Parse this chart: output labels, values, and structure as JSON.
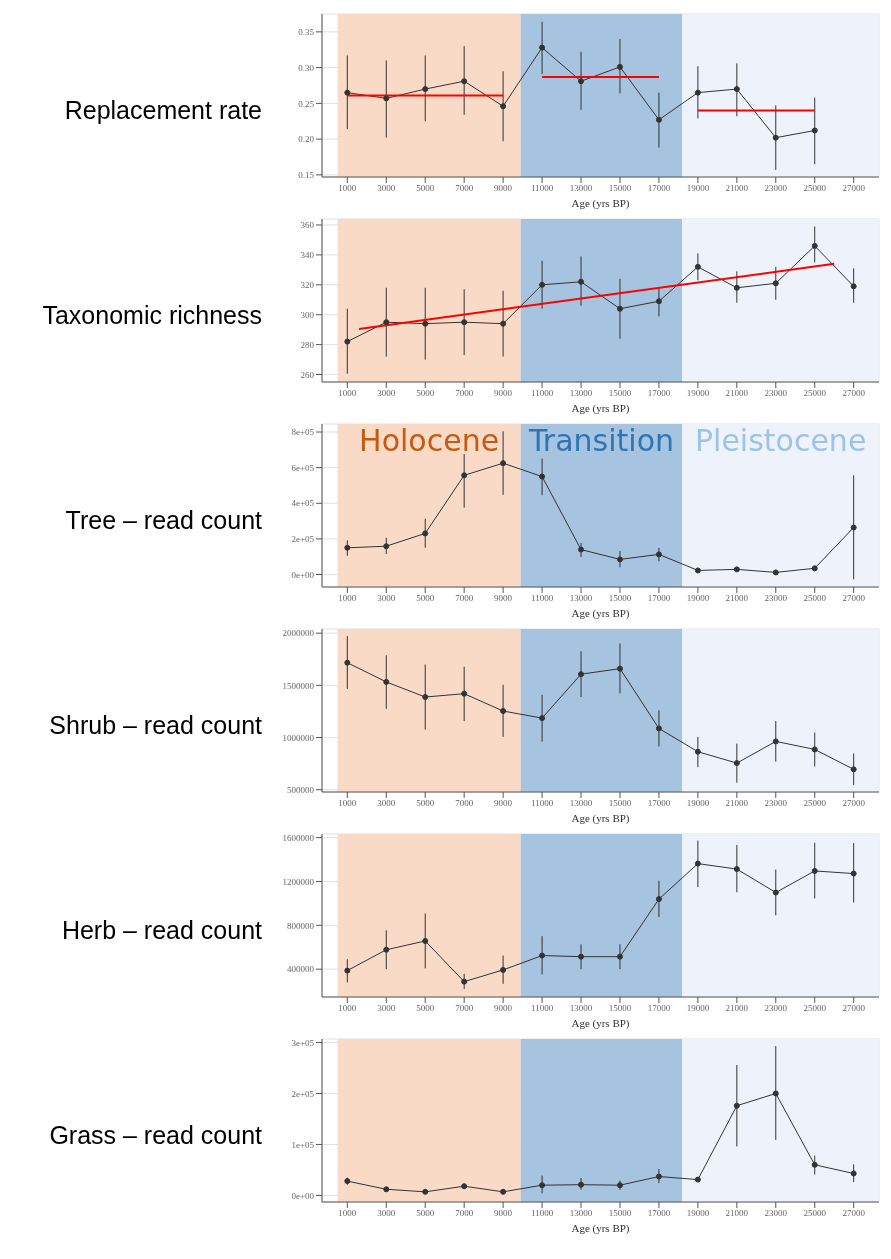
{
  "chart_data": [
    {
      "type": "line",
      "ylabel": "Replacement rate",
      "xlabel": "Age (yrs BP)",
      "grid": true,
      "marker": "circle",
      "xlim": [
        -300,
        28300
      ],
      "xticks": [
        1000,
        3000,
        5000,
        7000,
        9000,
        11000,
        13000,
        15000,
        17000,
        19000,
        21000,
        23000,
        25000,
        27000
      ],
      "ylim": [
        0.147,
        0.375
      ],
      "yticks": [
        0.15,
        {
          "value": 0.2,
          "label": "0.20"
        },
        0.25,
        {
          "value": 0.3,
          "label": "0.30"
        },
        0.35
      ],
      "bands": [
        {
          "axis": "x",
          "from": 500,
          "to": 9900,
          "color": "#f9dac6"
        },
        {
          "axis": "x",
          "from": 9900,
          "to": 18200,
          "color": "#a6c3df"
        },
        {
          "axis": "x",
          "from": 18200,
          "to": 28300,
          "color": "#eef3fb"
        }
      ],
      "series": [
        {
          "color": "#333333",
          "x": [
            1000,
            3000,
            5000,
            7000,
            9000,
            11000,
            13000,
            15000,
            17000,
            19000,
            21000,
            23000,
            25000
          ],
          "values": [
            0.265,
            0.257,
            0.27,
            0.281,
            0.246,
            0.328,
            0.281,
            0.301,
            0.227,
            0.265,
            0.27,
            0.202,
            0.212
          ],
          "errors": [
            [
              0.214,
              0.317
            ],
            [
              0.202,
              0.31
            ],
            [
              0.225,
              0.317
            ],
            [
              0.234,
              0.33
            ],
            [
              0.197,
              0.295
            ],
            [
              0.291,
              0.364
            ],
            [
              0.241,
              0.322
            ],
            [
              0.264,
              0.34
            ],
            [
              0.188,
              0.265
            ],
            [
              0.229,
              0.302
            ],
            [
              0.232,
              0.306
            ],
            [
              0.157,
              0.247
            ],
            [
              0.165,
              0.258
            ]
          ]
        },
        {
          "type": "line",
          "color": "#ff0000",
          "marker": "none",
          "x": [
            1000,
            9000
          ],
          "values": [
            0.261,
            0.261
          ]
        },
        {
          "type": "line",
          "color": "#ff0000",
          "marker": "none",
          "x": [
            11000,
            17000
          ],
          "values": [
            0.287,
            0.287
          ]
        },
        {
          "type": "line",
          "color": "#ff0000",
          "marker": "none",
          "x": [
            19000,
            25000
          ],
          "values": [
            0.24,
            0.24
          ]
        }
      ]
    },
    {
      "type": "line",
      "ylabel": "Taxonomic richness",
      "xlabel": "Age (yrs BP)",
      "grid": true,
      "marker": "circle",
      "xlim": [
        -300,
        28300
      ],
      "xticks": [
        1000,
        3000,
        5000,
        7000,
        9000,
        11000,
        13000,
        15000,
        17000,
        19000,
        21000,
        23000,
        25000,
        27000
      ],
      "ylim": [
        255,
        364
      ],
      "yticks": [
        260,
        280,
        300,
        320,
        340,
        360
      ],
      "bands": [
        {
          "axis": "x",
          "from": 500,
          "to": 9900,
          "color": "#f9dac6"
        },
        {
          "axis": "x",
          "from": 9900,
          "to": 18200,
          "color": "#a6c3df"
        },
        {
          "axis": "x",
          "from": 18200,
          "to": 28300,
          "color": "#eef3fb"
        }
      ],
      "series": [
        {
          "color": "#333333",
          "x": [
            1000,
            3000,
            5000,
            7000,
            9000,
            11000,
            13000,
            15000,
            17000,
            19000,
            21000,
            23000,
            25000,
            27000
          ],
          "values": [
            282,
            295,
            294,
            295,
            294,
            320,
            322,
            304,
            309,
            332,
            318,
            321,
            346,
            319
          ],
          "errors": [
            [
              260.5,
              304
            ],
            [
              272,
              318
            ],
            [
              270,
              318
            ],
            [
              273,
              317
            ],
            [
              272,
              316
            ],
            [
              304,
              336
            ],
            [
              306,
              339
            ],
            [
              284,
              324
            ],
            [
              299,
              318
            ],
            [
              323,
              341
            ],
            [
              308,
              329
            ],
            [
              310,
              332
            ],
            [
              335,
              359
            ],
            [
              308,
              331
            ]
          ]
        },
        {
          "type": "line",
          "color": "#ff0000",
          "marker": "none",
          "x": [
            1600,
            26000
          ],
          "values": [
            290.5,
            334
          ]
        }
      ]
    },
    {
      "type": "line",
      "ylabel": "Tree – read count",
      "xlabel": "Age (yrs BP)",
      "grid": true,
      "marker": "circle",
      "xlim": [
        -300,
        28300
      ],
      "xticks": [
        1000,
        3000,
        5000,
        7000,
        9000,
        11000,
        13000,
        15000,
        17000,
        19000,
        21000,
        23000,
        25000,
        27000
      ],
      "ylim": [
        -70000,
        845000
      ],
      "yticks": [
        {
          "value": 0,
          "label": "0e+00"
        },
        {
          "value": 200000,
          "label": "2e+05"
        },
        {
          "value": 400000,
          "label": "4e+05"
        },
        {
          "value": 600000,
          "label": "6e+05"
        },
        {
          "value": 800000,
          "label": "8e+05"
        }
      ],
      "bands": [
        {
          "axis": "x",
          "from": 500,
          "to": 9900,
          "color": "#f9dac6",
          "label": "Holocene"
        },
        {
          "axis": "x",
          "from": 9900,
          "to": 18200,
          "color": "#a6c3df",
          "label": "Transition"
        },
        {
          "axis": "x",
          "from": 18200,
          "to": 28300,
          "color": "#eef3fb",
          "label": "Pleistocene"
        }
      ],
      "series": [
        {
          "color": "#333333",
          "x": [
            1000,
            3000,
            5000,
            7000,
            9000,
            11000,
            13000,
            15000,
            17000,
            19000,
            21000,
            23000,
            25000,
            27000
          ],
          "values": [
            150000,
            159000,
            231000,
            557000,
            625000,
            550000,
            140000,
            85000,
            113000,
            23000,
            29000,
            12000,
            35000,
            264000
          ],
          "errors": [
            [
              105000,
              192000
            ],
            [
              115000,
              206000
            ],
            [
              150000,
              313000
            ],
            [
              375000,
              676000
            ],
            [
              447000,
              804000
            ],
            [
              445000,
              651000
            ],
            [
              99000,
              177000
            ],
            [
              41000,
              132000
            ],
            [
              74000,
              150000
            ],
            null,
            null,
            null,
            null,
            [
              -27000,
              557000
            ]
          ]
        }
      ]
    },
    {
      "type": "line",
      "ylabel": "Shrub – read count",
      "xlabel": "Age (yrs BP)",
      "grid": true,
      "marker": "circle",
      "xlim": [
        -300,
        28300
      ],
      "xticks": [
        1000,
        3000,
        5000,
        7000,
        9000,
        11000,
        13000,
        15000,
        17000,
        19000,
        21000,
        23000,
        25000,
        27000
      ],
      "ylim": [
        478000,
        2040000
      ],
      "yticks": [
        500000,
        1000000,
        1500000,
        2000000
      ],
      "bands": [
        {
          "axis": "x",
          "from": 500,
          "to": 9900,
          "color": "#f9dac6"
        },
        {
          "axis": "x",
          "from": 9900,
          "to": 18200,
          "color": "#a6c3df"
        },
        {
          "axis": "x",
          "from": 18200,
          "to": 28300,
          "color": "#eef3fb"
        }
      ],
      "series": [
        {
          "color": "#333333",
          "x": [
            1000,
            3000,
            5000,
            7000,
            9000,
            11000,
            13000,
            15000,
            17000,
            19000,
            21000,
            23000,
            25000,
            27000
          ],
          "values": [
            1717000,
            1533000,
            1388000,
            1420000,
            1254000,
            1186000,
            1607000,
            1660000,
            1087000,
            864000,
            755000,
            963000,
            886000,
            695000
          ],
          "errors": [
            [
              1466000,
              1972000
            ],
            [
              1275000,
              1788000
            ],
            [
              1077000,
              1699000
            ],
            [
              1158000,
              1678000
            ],
            [
              1006000,
              1505000
            ],
            [
              960000,
              1409000
            ],
            [
              1388000,
              1827000
            ],
            [
              1423000,
              1901000
            ],
            [
              914000,
              1261000
            ],
            [
              716000,
              1006000
            ],
            [
              567000,
              942000
            ],
            [
              769000,
              1158000
            ],
            [
              723000,
              1048000
            ],
            [
              546000,
              847000
            ]
          ]
        }
      ]
    },
    {
      "type": "line",
      "ylabel": "Herb – read count",
      "xlabel": "Age (yrs BP)",
      "grid": true,
      "marker": "circle",
      "xlim": [
        -300,
        28300
      ],
      "xticks": [
        1000,
        3000,
        5000,
        7000,
        9000,
        11000,
        13000,
        15000,
        17000,
        19000,
        21000,
        23000,
        25000,
        27000
      ],
      "ylim": [
        146000,
        1633000
      ],
      "yticks": [
        400000,
        800000,
        1200000,
        1600000
      ],
      "bands": [
        {
          "axis": "x",
          "from": 500,
          "to": 9900,
          "color": "#f9dac6"
        },
        {
          "axis": "x",
          "from": 9900,
          "to": 18200,
          "color": "#a6c3df"
        },
        {
          "axis": "x",
          "from": 18200,
          "to": 28300,
          "color": "#eef3fb"
        }
      ],
      "series": [
        {
          "color": "#333333",
          "x": [
            1000,
            3000,
            5000,
            7000,
            9000,
            11000,
            13000,
            15000,
            17000,
            19000,
            21000,
            23000,
            25000,
            27000
          ],
          "values": [
            387000,
            577000,
            657000,
            286000,
            393000,
            524000,
            514000,
            514000,
            1039000,
            1363000,
            1313000,
            1099000,
            1296000,
            1272000
          ],
          "errors": [
            [
              280000,
              490000
            ],
            [
              400000,
              754000
            ],
            [
              407000,
              908000
            ],
            [
              220000,
              357000
            ],
            [
              266000,
              524000
            ],
            [
              353000,
              701000
            ],
            [
              400000,
              627000
            ],
            [
              400000,
              627000
            ],
            [
              875000,
              1206000
            ],
            [
              1149000,
              1573000
            ],
            [
              1102000,
              1533000
            ],
            [
              891000,
              1309000
            ],
            [
              1045000,
              1553000
            ],
            [
              1008000,
              1550000
            ]
          ]
        }
      ]
    },
    {
      "type": "line",
      "ylabel": "Grass – read count",
      "xlabel": "Age (yrs BP)",
      "grid": true,
      "marker": "circle",
      "xlim": [
        -300,
        28300
      ],
      "xticks": [
        1000,
        3000,
        5000,
        7000,
        9000,
        11000,
        13000,
        15000,
        17000,
        19000,
        21000,
        23000,
        25000,
        27000
      ],
      "ylim": [
        -13000,
        307000
      ],
      "yticks": [
        {
          "value": 0,
          "label": "0e+00"
        },
        {
          "value": 100000,
          "label": "1e+05"
        },
        {
          "value": 200000,
          "label": "2e+05"
        },
        {
          "value": 300000,
          "label": "3e+05"
        }
      ],
      "bands": [
        {
          "axis": "x",
          "from": 500,
          "to": 9900,
          "color": "#f9dac6"
        },
        {
          "axis": "x",
          "from": 9900,
          "to": 18200,
          "color": "#a6c3df"
        },
        {
          "axis": "x",
          "from": 18200,
          "to": 28300,
          "color": "#eef3fb"
        }
      ],
      "series": [
        {
          "color": "#333333",
          "x": [
            1000,
            3000,
            5000,
            7000,
            9000,
            11000,
            13000,
            15000,
            17000,
            19000,
            21000,
            23000,
            25000,
            27000
          ],
          "values": [
            28000,
            12000,
            7000,
            18000,
            7000,
            20000,
            21000,
            20000,
            37000,
            31000,
            176000,
            200000,
            60000,
            43000
          ],
          "errors": [
            [
              21000,
              35000
            ],
            null,
            null,
            null,
            null,
            [
              4000,
              39000
            ],
            [
              11000,
              34000
            ],
            [
              11000,
              29000
            ],
            [
              24000,
              52000
            ],
            null,
            [
              96000,
              256000
            ],
            [
              109000,
              293000
            ],
            [
              41000,
              78000
            ],
            [
              26000,
              61000
            ]
          ]
        }
      ]
    }
  ]
}
